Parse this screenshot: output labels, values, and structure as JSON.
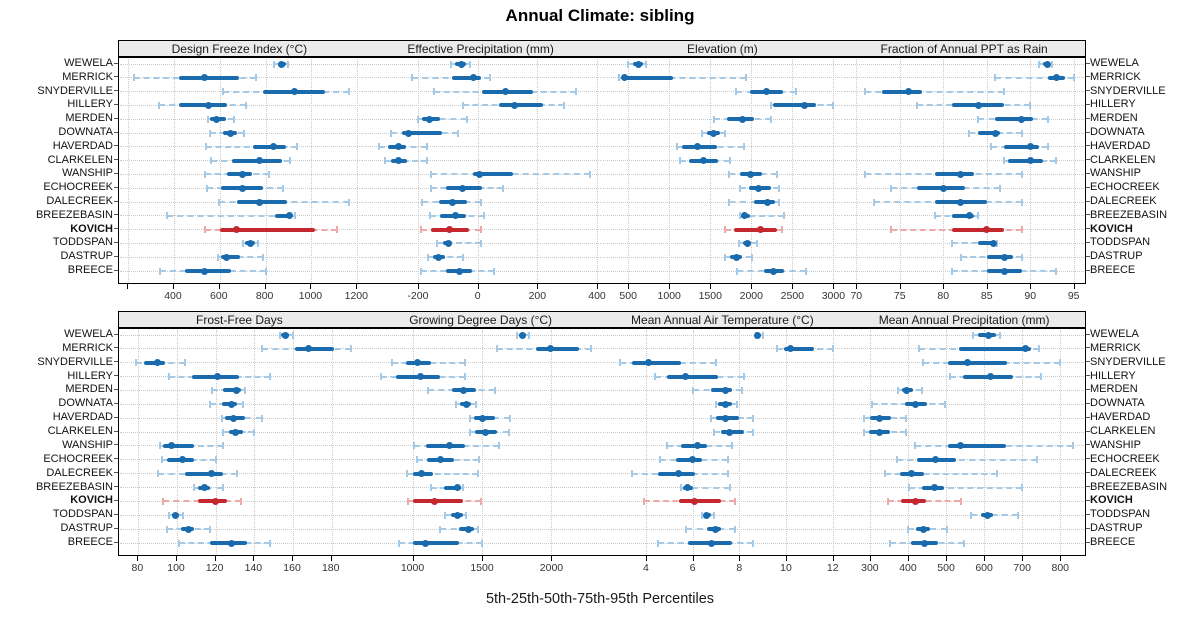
{
  "title": "Annual Climate: sibling",
  "axis_label": "5th-25th-50th-75th-95th Percentiles",
  "percentile_labels": [
    "5th",
    "25th",
    "50th",
    "75th",
    "95th"
  ],
  "highlight_site": "KOVICH",
  "colors": {
    "normal_dark": "#1a6bad",
    "normal_light": "#a6c9e5",
    "highlight_dark": "#c4272e",
    "highlight_light": "#eca9a7",
    "header_bg": "#ebebeb",
    "grid": "#c9c9c9",
    "border": "#000000"
  },
  "sites": [
    "WEWELA",
    "MERRICK",
    "SNYDERVILLE",
    "HILLERY",
    "MERDEN",
    "DOWNATA",
    "HAVERDAD",
    "CLARKELEN",
    "WANSHIP",
    "ECHOCREEK",
    "DALECREEK",
    "BREEZEBASIN",
    "KOVICH",
    "TODDSPAN",
    "DASTRUP",
    "BREECE"
  ],
  "chart_data": {
    "type": "dotplot-percentile-trellis",
    "layout_rows": 2,
    "layout_cols": 4,
    "grid": "dotted",
    "panels": [
      {
        "title": "Design Freeze Index (°C)",
        "domain": [
          160,
          1215
        ],
        "ticks": [
          [
            200,
            ""
          ],
          [
            400,
            "400"
          ],
          [
            600,
            "600"
          ],
          [
            800,
            "800"
          ],
          [
            1000,
            "1000"
          ],
          [
            1200,
            "1200"
          ]
        ],
        "values": [
          [
            838,
            852,
            870,
            888,
            896
          ],
          [
            225,
            420,
            535,
            685,
            760
          ],
          [
            615,
            790,
            925,
            1060,
            1165
          ],
          [
            335,
            420,
            550,
            630,
            715
          ],
          [
            547,
            557,
            584,
            625,
            662
          ],
          [
            557,
            615,
            645,
            677,
            705
          ],
          [
            540,
            745,
            835,
            890,
            935
          ],
          [
            560,
            655,
            775,
            870,
            905
          ],
          [
            535,
            630,
            700,
            740,
            815
          ],
          [
            545,
            605,
            700,
            790,
            875
          ],
          [
            595,
            675,
            775,
            895,
            1165
          ],
          [
            370,
            840,
            905,
            915,
            930
          ],
          [
            535,
            600,
            672,
            1015,
            1110
          ],
          [
            700,
            712,
            732,
            752,
            768
          ],
          [
            590,
            605,
            630,
            690,
            790
          ],
          [
            338,
            450,
            535,
            650,
            800
          ]
        ]
      },
      {
        "title": "Effective Precipitation (mm)",
        "domain": [
          -395,
          415
        ],
        "ticks": [
          [
            -200,
            "-200"
          ],
          [
            0,
            "0"
          ],
          [
            200,
            "200"
          ],
          [
            400,
            "400"
          ]
        ],
        "values": [
          [
            -90,
            -75,
            -55,
            -40,
            -25
          ],
          [
            -220,
            -85,
            -15,
            10,
            40
          ],
          [
            -145,
            15,
            95,
            185,
            330
          ],
          [
            -50,
            70,
            125,
            220,
            290
          ],
          [
            -200,
            -185,
            -160,
            -125,
            -35
          ],
          [
            -290,
            -255,
            -230,
            -120,
            -65
          ],
          [
            -330,
            -300,
            -265,
            -240,
            -170
          ],
          [
            -310,
            -290,
            -265,
            -235,
            -170
          ],
          [
            -155,
            -15,
            5,
            120,
            375
          ],
          [
            -155,
            -105,
            -50,
            15,
            85
          ],
          [
            -185,
            -130,
            -85,
            -35,
            10
          ],
          [
            -160,
            -125,
            -75,
            -40,
            20
          ],
          [
            -190,
            -155,
            -95,
            -30,
            10
          ],
          [
            -135,
            -115,
            -97,
            -85,
            10
          ],
          [
            -165,
            -150,
            -130,
            -110,
            -50
          ],
          [
            -190,
            -105,
            -60,
            -20,
            55
          ]
        ]
      },
      {
        "title": "Elevation (m)",
        "domain": [
          175,
          3120
        ],
        "ticks": [
          [
            500,
            "500"
          ],
          [
            1000,
            "1000"
          ],
          [
            1500,
            "1500"
          ],
          [
            2000,
            "2000"
          ],
          [
            2500,
            "2500"
          ],
          [
            3000,
            "3000"
          ]
        ],
        "values": [
          [
            500,
            560,
            630,
            680,
            720
          ],
          [
            390,
            420,
            450,
            1050,
            1930
          ],
          [
            1810,
            1990,
            2190,
            2390,
            2540
          ],
          [
            2235,
            2260,
            2650,
            2790,
            2990
          ],
          [
            1540,
            1705,
            1890,
            2030,
            2235
          ],
          [
            1400,
            1460,
            1540,
            1615,
            1685
          ],
          [
            1090,
            1155,
            1345,
            1580,
            1910
          ],
          [
            1130,
            1235,
            1420,
            1600,
            1745
          ],
          [
            1725,
            1865,
            1990,
            2130,
            2315
          ],
          [
            1865,
            1970,
            2090,
            2235,
            2335
          ],
          [
            1725,
            2030,
            2200,
            2285,
            2335
          ],
          [
            1865,
            1875,
            1920,
            1990,
            2400
          ],
          [
            1685,
            1785,
            2110,
            2315,
            2375
          ],
          [
            1845,
            1895,
            1950,
            2000,
            2070
          ],
          [
            1685,
            1735,
            1820,
            1890,
            2010
          ],
          [
            1825,
            2155,
            2275,
            2400,
            2665
          ]
        ]
      },
      {
        "title": "Fraction of Annual PPT as Rain",
        "domain": [
          68.5,
          96.3
        ],
        "ticks": [
          [
            70,
            "70"
          ],
          [
            75,
            "75"
          ],
          [
            80,
            "80"
          ],
          [
            85,
            "85"
          ],
          [
            90,
            "90"
          ],
          [
            95,
            "95"
          ]
        ],
        "values": [
          [
            91,
            91.5,
            92,
            92.3,
            92.5
          ],
          [
            86,
            92,
            93,
            94,
            95
          ],
          [
            71,
            73,
            76,
            77.5,
            87
          ],
          [
            77,
            81,
            84,
            87,
            90
          ],
          [
            84,
            86,
            89,
            90.3,
            92
          ],
          [
            83,
            84,
            86,
            86.5,
            89
          ],
          [
            85.5,
            87,
            90,
            91,
            92
          ],
          [
            87,
            87.5,
            90,
            91.5,
            93
          ],
          [
            71,
            79,
            82,
            83.5,
            89
          ],
          [
            74,
            77,
            80,
            82.5,
            86.5
          ],
          [
            72,
            79,
            82,
            85,
            89
          ],
          [
            79,
            81,
            83,
            83.5,
            84
          ],
          [
            74,
            81,
            85,
            87,
            89
          ],
          [
            81,
            84,
            85.8,
            86,
            86.2
          ],
          [
            82,
            85,
            87,
            88,
            89
          ],
          [
            81,
            85,
            87,
            89,
            93
          ]
        ]
      },
      {
        "title": "Frost-Free Days",
        "domain": [
          70,
          195
        ],
        "ticks": [
          [
            80,
            "80"
          ],
          [
            100,
            "100"
          ],
          [
            120,
            "120"
          ],
          [
            140,
            "140"
          ],
          [
            160,
            "160"
          ],
          [
            180,
            "180"
          ]
        ],
        "values": [
          [
            153,
            154,
            156,
            158,
            160
          ],
          [
            144,
            161,
            168,
            181,
            190
          ],
          [
            79,
            83,
            90,
            94,
            104
          ],
          [
            96,
            108,
            121,
            132,
            148
          ],
          [
            118,
            124,
            131,
            133,
            135
          ],
          [
            117,
            123,
            128,
            131,
            134
          ],
          [
            123,
            125,
            129,
            135,
            144
          ],
          [
            124,
            127,
            130,
            134,
            140
          ],
          [
            91,
            93,
            97,
            109,
            124
          ],
          [
            92,
            95,
            103,
            109,
            120
          ],
          [
            90,
            104,
            118,
            124,
            131
          ],
          [
            109,
            111,
            114,
            117,
            124
          ],
          [
            93,
            111,
            120,
            126,
            133
          ],
          [
            96,
            97.5,
            99,
            101,
            103
          ],
          [
            95,
            102,
            106,
            109,
            117
          ],
          [
            101,
            117,
            128,
            136,
            148
          ]
        ]
      },
      {
        "title": "Growing Degree Days (°C)",
        "domain": [
          620,
          2360
        ],
        "ticks": [
          [
            1000,
            "1000"
          ],
          [
            1500,
            "1500"
          ],
          [
            2000,
            "2000"
          ]
        ],
        "values": [
          [
            1755,
            1770,
            1790,
            1815,
            1835
          ],
          [
            1605,
            1885,
            1995,
            2195,
            2285
          ],
          [
            855,
            950,
            1035,
            1130,
            1380
          ],
          [
            770,
            880,
            1055,
            1200,
            1380
          ],
          [
            1110,
            1285,
            1365,
            1460,
            1595
          ],
          [
            1315,
            1343,
            1385,
            1420,
            1460
          ],
          [
            1415,
            1440,
            1500,
            1590,
            1700
          ],
          [
            1415,
            1450,
            1525,
            1610,
            1695
          ],
          [
            1010,
            1095,
            1265,
            1375,
            1620
          ],
          [
            1035,
            1105,
            1200,
            1300,
            1475
          ],
          [
            960,
            1000,
            1065,
            1150,
            1470
          ],
          [
            1130,
            1225,
            1320,
            1350,
            1365
          ],
          [
            970,
            1005,
            1160,
            1365,
            1490
          ],
          [
            1230,
            1280,
            1325,
            1360,
            1385
          ],
          [
            1200,
            1333,
            1400,
            1440,
            1470
          ],
          [
            900,
            1000,
            1095,
            1333,
            1500
          ]
        ]
      },
      {
        "title": "Mean Annual Air Temperature (°C)",
        "domain": [
          2.1,
          12.45
        ],
        "ticks": [
          [
            4,
            "4"
          ],
          [
            6,
            "6"
          ],
          [
            8,
            "8"
          ],
          [
            10,
            "10"
          ],
          [
            12,
            "12"
          ]
        ],
        "values": [
          [
            8.7,
            8.75,
            8.8,
            8.9,
            9.0
          ],
          [
            9.6,
            9.9,
            10.2,
            11.2,
            12.0
          ],
          [
            2.9,
            3.4,
            4.1,
            5.5,
            7.0
          ],
          [
            4.4,
            4.9,
            5.7,
            7.1,
            8.2
          ],
          [
            6.0,
            6.8,
            7.4,
            7.7,
            8.1
          ],
          [
            7.0,
            7.1,
            7.4,
            7.7,
            7.9
          ],
          [
            6.8,
            7.0,
            7.4,
            8.0,
            8.6
          ],
          [
            6.9,
            7.2,
            7.6,
            8.2,
            8.6
          ],
          [
            4.9,
            5.5,
            6.2,
            6.6,
            7.7
          ],
          [
            4.6,
            5.3,
            6.0,
            6.4,
            7.5
          ],
          [
            3.4,
            4.5,
            5.4,
            6.1,
            7.5
          ],
          [
            5.5,
            5.6,
            5.8,
            6.0,
            7.6
          ],
          [
            3.9,
            5.4,
            6.1,
            7.2,
            7.8
          ],
          [
            6.4,
            6.5,
            6.6,
            6.8,
            6.9
          ],
          [
            5.7,
            6.6,
            7.0,
            7.2,
            7.8
          ],
          [
            4.5,
            5.8,
            6.8,
            7.7,
            8.6
          ]
        ]
      },
      {
        "title": "Mean Annual Precipitation (mm)",
        "domain": [
          230,
          865
        ],
        "ticks": [
          [
            300,
            "300"
          ],
          [
            400,
            "400"
          ],
          [
            500,
            "500"
          ],
          [
            600,
            "600"
          ],
          [
            700,
            "700"
          ],
          [
            800,
            "800"
          ]
        ],
        "values": [
          [
            570,
            585,
            612,
            630,
            642
          ],
          [
            430,
            535,
            710,
            722,
            745
          ],
          [
            440,
            505,
            557,
            660,
            800
          ],
          [
            510,
            545,
            617,
            675,
            750
          ],
          [
            375,
            385,
            396,
            414,
            436
          ],
          [
            305,
            393,
            420,
            449,
            496
          ],
          [
            285,
            300,
            326,
            356,
            396
          ],
          [
            285,
            298,
            325,
            354,
            395
          ],
          [
            418,
            506,
            538,
            658,
            834
          ],
          [
            370,
            424,
            471,
            526,
            740
          ],
          [
            339,
            378,
            408,
            443,
            634
          ],
          [
            404,
            436,
            469,
            495,
            700
          ],
          [
            347,
            382,
            419,
            448,
            538
          ],
          [
            565,
            593,
            608,
            623,
            688
          ],
          [
            400,
            422,
            440,
            458,
            503
          ],
          [
            352,
            408,
            443,
            480,
            546
          ]
        ]
      }
    ]
  }
}
